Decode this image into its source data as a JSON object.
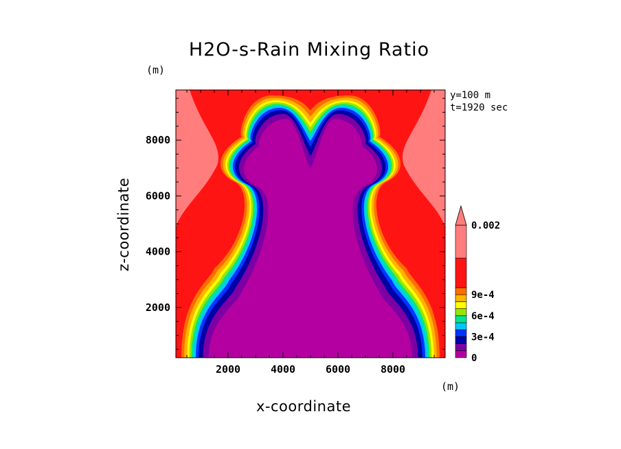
{
  "chart_data": {
    "type": "heatmap",
    "title": "H2O-s-Rain Mixing Ratio",
    "xlabel": "x-coordinate",
    "ylabel": "z-coordinate",
    "x_unit": "(m)",
    "y_unit": "(m)",
    "annotations": [
      "y=100 m",
      "t=1920 sec"
    ],
    "xlim": [
      100,
      9900
    ],
    "ylim": [
      200,
      9800
    ],
    "x_ticks": [
      2000,
      4000,
      6000,
      8000
    ],
    "y_ticks": [
      2000,
      4000,
      6000,
      8000
    ],
    "x_tick_labels": [
      "2000",
      "4000",
      "6000",
      "8000"
    ],
    "y_tick_labels": [
      "2000",
      "4000",
      "6000",
      "8000"
    ],
    "colorbar": {
      "levels": [
        0,
        0.0001,
        0.0002,
        0.0003,
        0.0004,
        0.0005,
        0.0006,
        0.0007,
        0.0008,
        0.0009,
        0.001,
        0.002
      ],
      "colors": [
        "#b400a0",
        "#7d00a5",
        "#0000a5",
        "#0033ff",
        "#00c8ff",
        "#00e68c",
        "#96e600",
        "#ffff00",
        "#ffb400",
        "#ff6e00",
        "#ff1414",
        "#ff7d7d"
      ],
      "extend": "max",
      "tick_labels": [
        "0",
        "3e-4",
        "6e-4",
        "9e-4",
        "0.002"
      ]
    },
    "field_description": "Symmetric two-lobed structure: rain-free core (0) over the center and lower domain, with M-shaped upper dome; mixing ratio increases outward through blue, cyan, green, yellow, orange to red (>1e-3) and pink (>2e-3) near lateral boundaries and top."
  }
}
